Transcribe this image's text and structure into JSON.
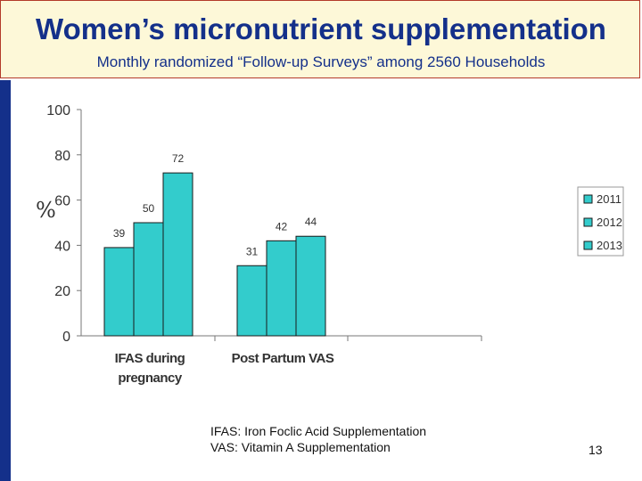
{
  "slide": {
    "title": "Women’s micronutrient supplementation",
    "subtitle": "Monthly randomized “Follow-up Surveys” among 2560 Households",
    "footnote_lines": [
      "IFAS: Iron Foclic Acid Supplementation",
      "VAS: Vitamin A Supplementation"
    ],
    "slide_number": "13"
  },
  "colors": {
    "bar": "#33cccc",
    "bar_stroke": "#1a1a1a",
    "title": "#14308a",
    "sidebar": "#14308a",
    "header_bg": "#fdf8d8",
    "header_border": "#b33a2a"
  },
  "chart_data": {
    "type": "bar",
    "title": "",
    "xlabel": "",
    "ylabel": "%",
    "ylim": [
      0,
      100
    ],
    "yticks": [
      0,
      20,
      40,
      60,
      80,
      100
    ],
    "grid": false,
    "legend_position": "right",
    "categories": [
      {
        "lines": [
          "IFAS during",
          "pregnancy"
        ]
      },
      {
        "lines": [
          "Post Partum VAS"
        ]
      }
    ],
    "series": [
      {
        "name": "2011",
        "values": [
          39,
          31
        ]
      },
      {
        "name": "2012",
        "values": [
          50,
          42
        ]
      },
      {
        "name": "2013",
        "values": [
          72,
          44
        ]
      }
    ]
  }
}
